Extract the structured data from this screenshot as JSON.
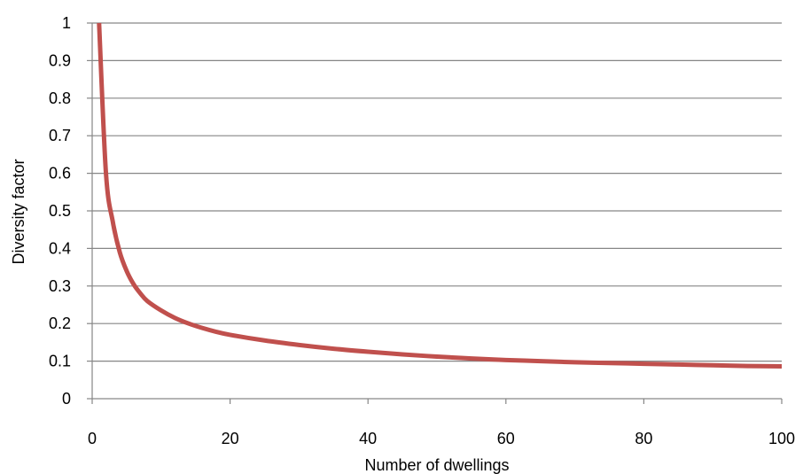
{
  "chart_data": {
    "type": "line",
    "title": "",
    "xlabel": "Number of dwellings",
    "ylabel": "Diversity factor",
    "xlim": [
      0,
      100
    ],
    "ylim": [
      0,
      1
    ],
    "x_ticks": [
      "0",
      "20",
      "40",
      "60",
      "80",
      "100"
    ],
    "y_ticks": [
      "0",
      "0.1",
      "0.2",
      "0.3",
      "0.4",
      "0.5",
      "0.6",
      "0.7",
      "0.8",
      "0.9",
      "1"
    ],
    "grid": "horizontal",
    "colors": {
      "line": "#c0504d",
      "grid": "#868686",
      "axis": "#868686"
    },
    "series": [
      {
        "x": [
          1,
          2,
          3,
          4,
          5,
          6,
          7,
          8,
          10,
          12,
          14,
          16,
          18,
          20,
          25,
          30,
          35,
          40,
          45,
          50,
          55,
          60,
          65,
          70,
          75,
          80,
          85,
          90,
          95,
          100
        ],
        "values": [
          1.0,
          0.6,
          0.47,
          0.39,
          0.34,
          0.305,
          0.28,
          0.26,
          0.235,
          0.215,
          0.2,
          0.188,
          0.178,
          0.17,
          0.155,
          0.143,
          0.133,
          0.125,
          0.118,
          0.112,
          0.107,
          0.103,
          0.1,
          0.097,
          0.095,
          0.093,
          0.091,
          0.089,
          0.087,
          0.086
        ]
      }
    ]
  }
}
